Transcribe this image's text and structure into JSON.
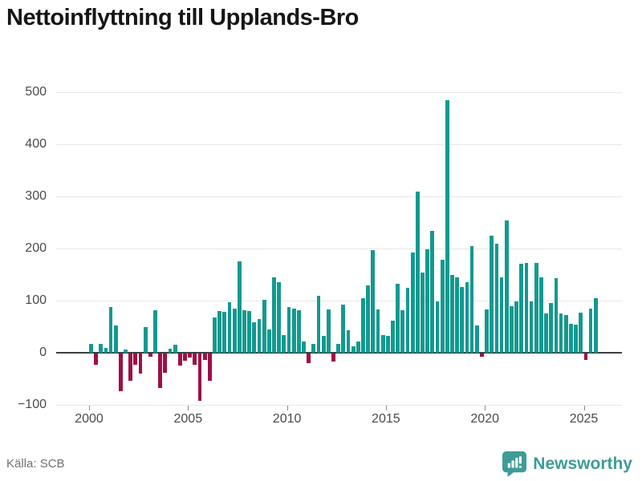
{
  "title": "Nettoinflyttning till Upplands-Bro",
  "source": "Källa: SCB",
  "branding": {
    "name": "Newsworthy",
    "logo_icon": "bar-chart-badge"
  },
  "colors": {
    "positive_bar": "#13998f",
    "negative_bar": "#9c1048",
    "grid": "#e7e7e7",
    "zero_line": "#3f3f3f",
    "title_text": "#161616",
    "axis_text": "#4a4a4a",
    "source_text": "#6e7177",
    "brand": "#3e9c96"
  },
  "chart_data": {
    "type": "bar",
    "title": "Nettoinflyttning till Upplands-Bro",
    "xlabel": "",
    "ylabel": "",
    "frequency": "quarterly",
    "start": "2000-Q1",
    "end": "2025-Q3",
    "ylim": [
      -100,
      500
    ],
    "yticks": [
      500,
      400,
      300,
      200,
      100,
      0,
      -100
    ],
    "xticks": [
      "2000",
      "2005",
      "2010",
      "2015",
      "2020",
      "2025"
    ],
    "grid": true,
    "legend": false,
    "values_by_year": {
      "2000": [
        17,
        -21,
        17,
        10
      ],
      "2001": [
        88,
        53,
        -72,
        6
      ],
      "2002": [
        -52,
        -22,
        -38,
        49
      ],
      "2003": [
        -6,
        82,
        -66,
        -37
      ],
      "2004": [
        8,
        15,
        -23,
        -14
      ],
      "2005": [
        -8,
        -22,
        -90,
        -13
      ],
      "2006": [
        -53,
        67,
        80,
        79
      ],
      "2007": [
        97,
        84,
        176,
        82
      ],
      "2008": [
        80,
        58,
        65,
        102
      ],
      "2009": [
        45,
        145,
        135,
        34
      ],
      "2010": [
        88,
        85,
        82,
        22
      ],
      "2011": [
        -18,
        17,
        110,
        32
      ],
      "2012": [
        83,
        -16,
        17,
        92
      ],
      "2013": [
        43,
        12,
        21,
        104
      ],
      "2014": [
        130,
        197,
        83,
        34
      ],
      "2015": [
        33,
        61,
        132,
        82
      ],
      "2016": [
        125,
        193,
        310,
        154
      ],
      "2017": [
        198,
        234,
        98,
        179
      ],
      "2018": [
        484,
        150,
        145,
        126
      ],
      "2019": [
        135,
        204,
        52,
        -6
      ],
      "2020": [
        83,
        225,
        210,
        144
      ],
      "2021": [
        254,
        90,
        99,
        171
      ],
      "2022": [
        172,
        98,
        172,
        144
      ],
      "2023": [
        76,
        96,
        143,
        75
      ],
      "2024": [
        73,
        55,
        54,
        77
      ],
      "2025": [
        -13,
        85,
        105
      ]
    }
  }
}
